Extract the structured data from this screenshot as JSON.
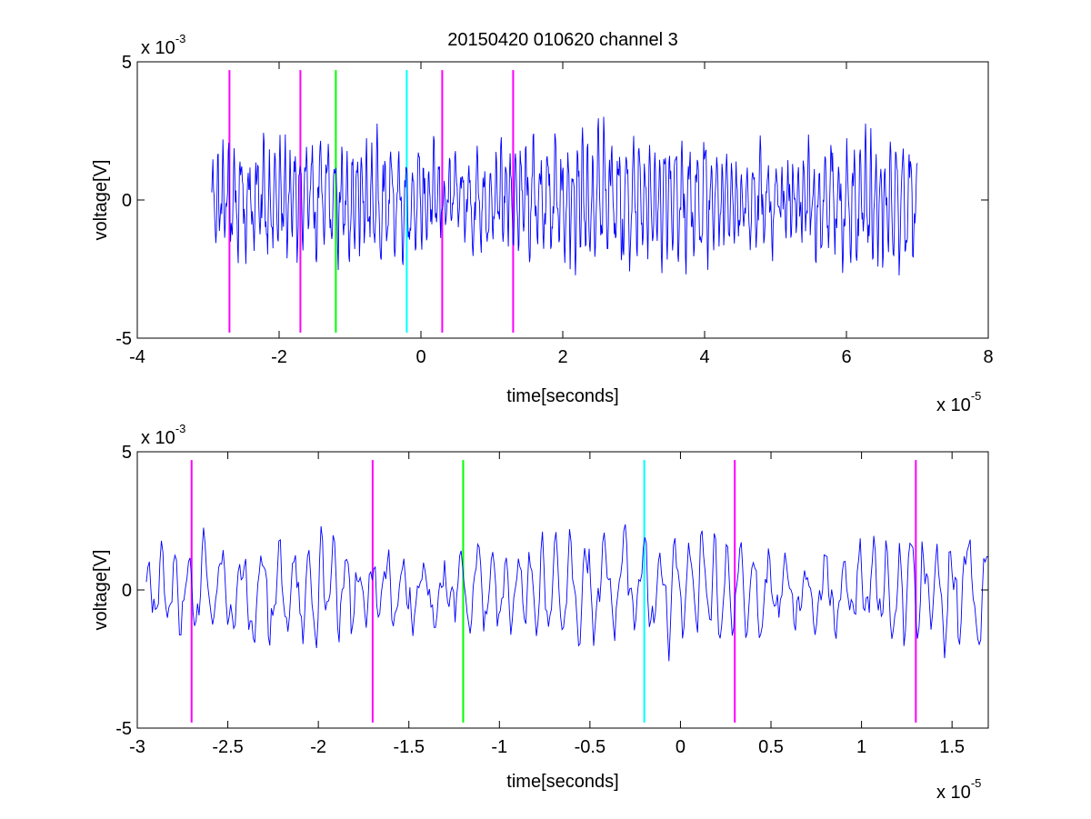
{
  "figure": {
    "title": "20150420 010620 channel 3"
  },
  "colors": {
    "signal": "#0000ff",
    "magenta": "#ff00ff",
    "green": "#00ff00",
    "cyan": "#00ffff",
    "axes": "#000000"
  },
  "chart_data": [
    {
      "type": "line",
      "title": "20150420 010620 channel 3",
      "xlabel": "time[seconds]",
      "ylabel": "voltage[V]",
      "x_multiplier": "x 10-5",
      "y_multiplier": "x 10-3",
      "xlim": [
        -4e-05,
        8e-05
      ],
      "ylim": [
        -0.005,
        0.005
      ],
      "xticks": [
        -4e-05,
        -2e-05,
        0,
        2e-05,
        4e-05,
        6e-05,
        8e-05
      ],
      "xtick_labels": [
        "-4",
        "-2",
        "0",
        "2",
        "4",
        "6",
        "8"
      ],
      "yticks": [
        -0.005,
        0,
        0.005
      ],
      "ytick_labels": [
        "-5",
        "0",
        "5"
      ],
      "grid": false,
      "series": [
        {
          "x_range": [
            -2.95e-05,
            7e-05
          ],
          "approx_points": 1200,
          "y_range": [
            -0.0042,
            0.0042
          ],
          "color": "#0000ff"
        }
      ],
      "markers": [
        {
          "x": -2.7e-05,
          "color": "#ff00ff",
          "ymin": -0.0048,
          "ymax": 0.0047
        },
        {
          "x": -1.7e-05,
          "color": "#ff00ff",
          "ymin": -0.0048,
          "ymax": 0.0047
        },
        {
          "x": -1.2e-05,
          "color": "#00ff00",
          "ymin": -0.0048,
          "ymax": 0.0047
        },
        {
          "x": -2e-06,
          "color": "#00ffff",
          "ymin": -0.0048,
          "ymax": 0.0047
        },
        {
          "x": 3e-06,
          "color": "#ff00ff",
          "ymin": -0.0048,
          "ymax": 0.0047
        },
        {
          "x": 1.3e-05,
          "color": "#ff00ff",
          "ymin": -0.0048,
          "ymax": 0.0047
        }
      ]
    },
    {
      "type": "line",
      "title": "",
      "xlabel": "time[seconds]",
      "ylabel": "voltage[V]",
      "x_multiplier": "x 10-5",
      "y_multiplier": "x 10-3",
      "xlim": [
        -3e-05,
        1.7e-05
      ],
      "ylim": [
        -0.005,
        0.005
      ],
      "xticks": [
        -3e-05,
        -2.5e-05,
        -2e-05,
        -1.5e-05,
        -1e-05,
        -5e-06,
        0,
        5e-06,
        1e-05,
        1.5e-05
      ],
      "xtick_labels": [
        "-3",
        "-2.5",
        "-2",
        "-1.5",
        "-1",
        "-0.5",
        "0",
        "0.5",
        "1",
        "1.5"
      ],
      "yticks": [
        -0.005,
        0,
        0.005
      ],
      "ytick_labels": [
        "-5",
        "0",
        "5"
      ],
      "grid": false,
      "series": [
        {
          "x_range": [
            -2.95e-05,
            1.7e-05
          ],
          "approx_points": 560,
          "y_range": [
            -0.0038,
            0.0038
          ],
          "color": "#0000ff"
        }
      ],
      "markers": [
        {
          "x": -2.7e-05,
          "color": "#ff00ff",
          "ymin": -0.0048,
          "ymax": 0.0047
        },
        {
          "x": -1.7e-05,
          "color": "#ff00ff",
          "ymin": -0.0048,
          "ymax": 0.0047
        },
        {
          "x": -1.2e-05,
          "color": "#00ff00",
          "ymin": -0.0048,
          "ymax": 0.0047
        },
        {
          "x": -2e-06,
          "color": "#00ffff",
          "ymin": -0.0048,
          "ymax": 0.0047
        },
        {
          "x": 3e-06,
          "color": "#ff00ff",
          "ymin": -0.0048,
          "ymax": 0.0047
        },
        {
          "x": 1.3e-05,
          "color": "#ff00ff",
          "ymin": -0.0048,
          "ymax": 0.0047
        }
      ]
    }
  ]
}
